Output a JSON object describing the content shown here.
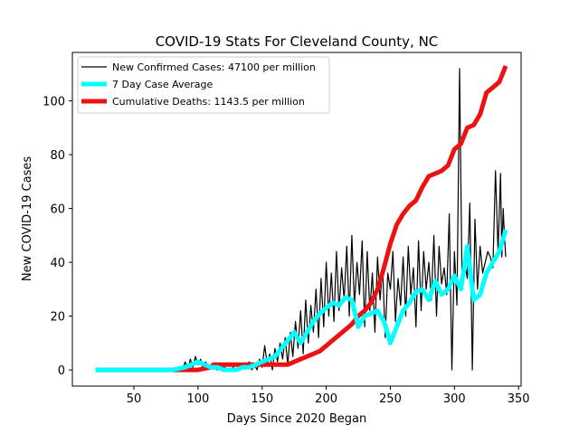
{
  "chart_data": {
    "type": "line",
    "title": "COVID-19 Stats For Cleveland County, NC",
    "xlabel": "Days Since 2020 Began",
    "ylabel": "New COVID-19 Cases",
    "xlim": [
      2,
      352
    ],
    "ylim": [
      -6,
      118
    ],
    "xticks": [
      50,
      100,
      150,
      200,
      250,
      300,
      350
    ],
    "yticks": [
      0,
      20,
      40,
      60,
      80,
      100
    ],
    "grid": false,
    "legend_position": "top-left",
    "series": [
      {
        "name": "New Confirmed Cases: 47100 per million",
        "color": "#000000",
        "x": [
          20,
          40,
          60,
          75,
          80,
          85,
          88,
          90,
          92,
          94,
          96,
          98,
          100,
          102,
          104,
          106,
          108,
          110,
          115,
          120,
          125,
          130,
          135,
          140,
          142,
          144,
          146,
          148,
          150,
          152,
          154,
          156,
          158,
          160,
          162,
          164,
          166,
          168,
          170,
          172,
          174,
          176,
          178,
          180,
          182,
          184,
          186,
          188,
          190,
          192,
          194,
          196,
          198,
          200,
          202,
          204,
          206,
          208,
          210,
          212,
          214,
          216,
          218,
          220,
          222,
          224,
          226,
          228,
          230,
          232,
          234,
          236,
          238,
          240,
          242,
          244,
          246,
          248,
          250,
          252,
          254,
          256,
          258,
          260,
          262,
          264,
          266,
          268,
          270,
          272,
          274,
          276,
          278,
          280,
          282,
          284,
          286,
          288,
          290,
          292,
          294,
          296,
          298,
          300,
          302,
          304,
          306,
          308,
          310,
          312,
          314,
          316,
          318,
          320,
          322,
          324,
          326,
          328,
          330,
          332,
          334,
          336,
          337,
          338,
          339,
          340
        ],
        "values": [
          0,
          0,
          0,
          0,
          0,
          1,
          0,
          3,
          0,
          4,
          1,
          5,
          2,
          4,
          0,
          3,
          1,
          2,
          0,
          1,
          0,
          2,
          1,
          3,
          0,
          2,
          0,
          4,
          1,
          9,
          2,
          6,
          0,
          8,
          3,
          10,
          4,
          12,
          2,
          14,
          5,
          18,
          8,
          22,
          6,
          26,
          10,
          24,
          14,
          30,
          12,
          34,
          16,
          40,
          20,
          36,
          18,
          44,
          22,
          38,
          26,
          46,
          20,
          50,
          24,
          40,
          28,
          48,
          16,
          44,
          22,
          36,
          14,
          42,
          26,
          38,
          12,
          36,
          30,
          44,
          18,
          34,
          24,
          42,
          20,
          46,
          28,
          38,
          16,
          48,
          22,
          44,
          30,
          40,
          26,
          50,
          20,
          46,
          32,
          38,
          28,
          58,
          0,
          44,
          24,
          112,
          30,
          40,
          34,
          62,
          0,
          56,
          30,
          46,
          36,
          40,
          44,
          42,
          38,
          74,
          44,
          73,
          42,
          60,
          50,
          42
        ]
      },
      {
        "name": "7 Day Case Average",
        "color": "#00ffff",
        "x": [
          20,
          40,
          60,
          80,
          90,
          95,
          100,
          105,
          110,
          115,
          120,
          125,
          130,
          135,
          140,
          145,
          150,
          155,
          160,
          165,
          170,
          175,
          180,
          185,
          190,
          195,
          200,
          205,
          210,
          215,
          220,
          225,
          230,
          235,
          240,
          245,
          250,
          255,
          260,
          265,
          270,
          275,
          280,
          285,
          290,
          295,
          300,
          305,
          310,
          315,
          320,
          325,
          330,
          335,
          340
        ],
        "values": [
          0,
          0,
          0,
          0,
          1,
          2,
          3,
          2,
          1,
          1,
          0,
          0,
          0,
          1,
          1,
          2,
          3,
          4,
          5,
          8,
          11,
          14,
          10,
          14,
          18,
          21,
          23,
          25,
          24,
          27,
          26,
          16,
          20,
          21,
          22,
          18,
          10,
          16,
          22,
          25,
          29,
          30,
          26,
          33,
          28,
          30,
          35,
          30,
          46,
          26,
          28,
          36,
          40,
          44,
          52
        ]
      },
      {
        "name": "Cumulative Deaths: 1143.5 per million",
        "color": "#ee1111",
        "x": [
          20,
          60,
          100,
          110,
          112,
          140,
          170,
          175,
          180,
          185,
          190,
          195,
          200,
          205,
          210,
          215,
          220,
          225,
          230,
          235,
          240,
          245,
          250,
          255,
          260,
          265,
          270,
          275,
          280,
          285,
          290,
          295,
          300,
          305,
          310,
          315,
          320,
          325,
          330,
          335,
          340
        ],
        "values": [
          0,
          0,
          0,
          1,
          2,
          2,
          2,
          3,
          4,
          5,
          6,
          7,
          9,
          11,
          13,
          15,
          17,
          20,
          22,
          25,
          30,
          38,
          47,
          54,
          58,
          61,
          63,
          68,
          72,
          73,
          74,
          76,
          82,
          84,
          90,
          91,
          95,
          103,
          105,
          107,
          113
        ]
      }
    ]
  }
}
